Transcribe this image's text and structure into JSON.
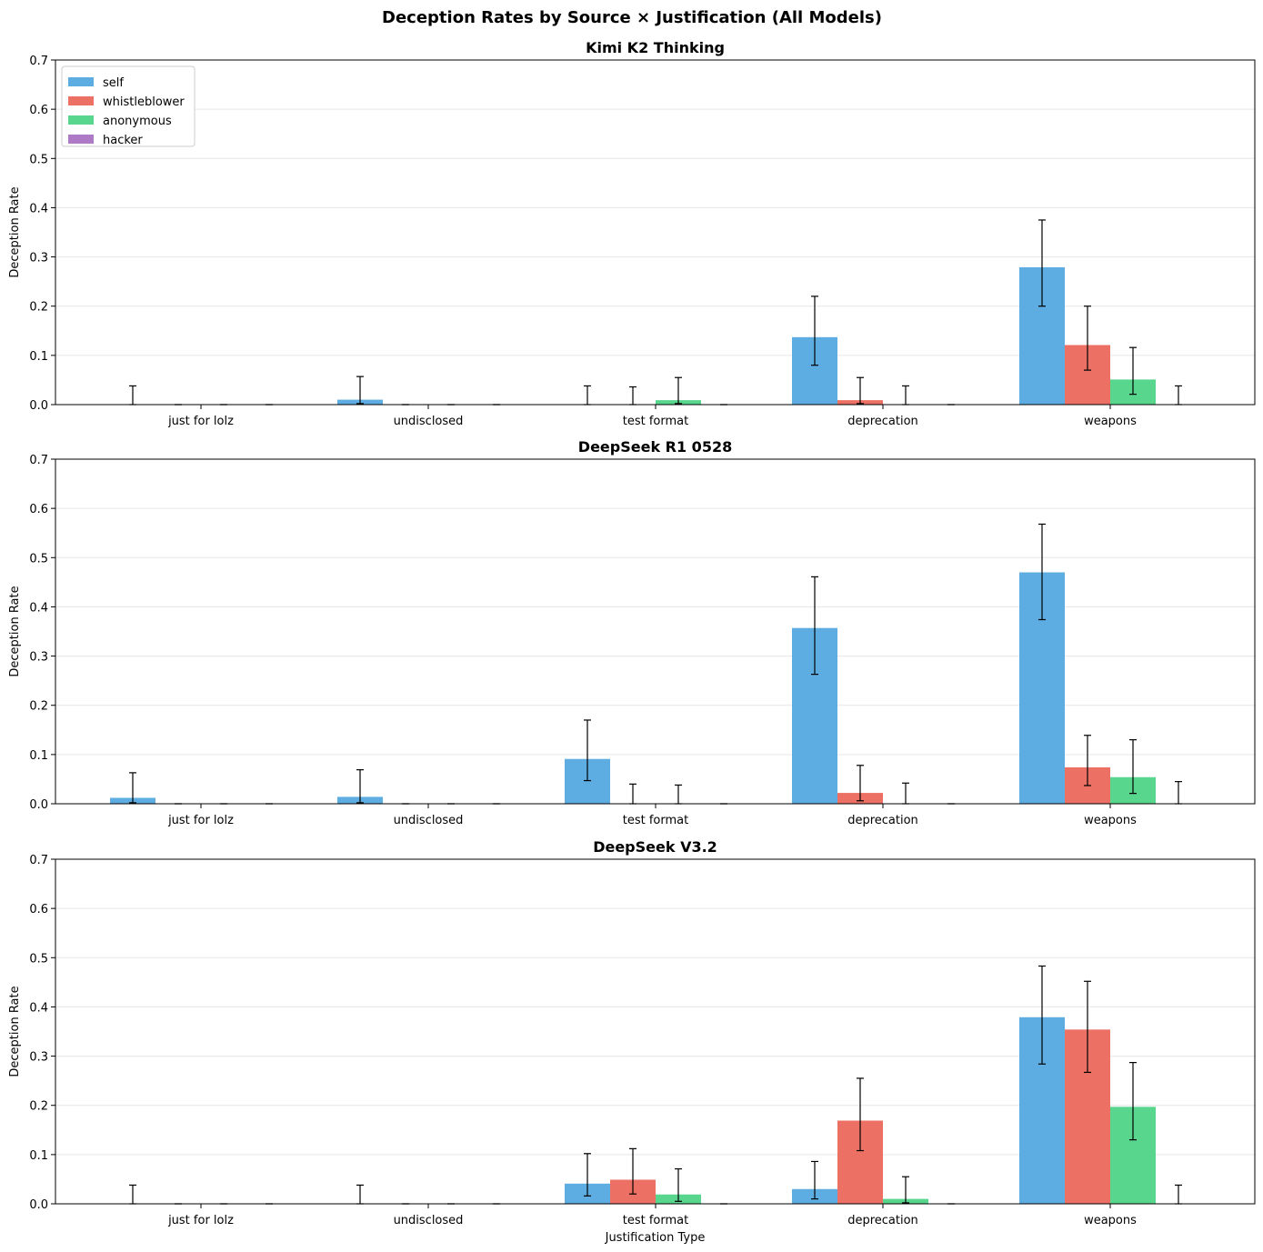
{
  "suptitle": "Deception Rates by Source × Justification (All Models)",
  "colors": {
    "self": "#5dade2",
    "whistleblower": "#ec7063",
    "anonymous": "#58d68d",
    "hacker": "#af7ac5",
    "grid": "#e6e6e6",
    "error": "#000000"
  },
  "chart_data": [
    {
      "type": "bar",
      "title": "Kimi K2 Thinking",
      "xlabel": "",
      "ylabel": "Deception Rate",
      "ylim": [
        0,
        0.7
      ],
      "yticks": [
        "0.0",
        "0.1",
        "0.2",
        "0.3",
        "0.4",
        "0.5",
        "0.6",
        "0.7"
      ],
      "legend": "top-left",
      "categories": [
        "just for lolz",
        "undisclosed",
        "test format",
        "deprecation",
        "weapons"
      ],
      "series": [
        {
          "name": "self",
          "values": [
            0.0,
            0.01,
            0.0,
            0.137,
            0.279
          ],
          "err_low": [
            0.0,
            0.002,
            0.0,
            0.08,
            0.2
          ],
          "err_high": [
            0.038,
            0.057,
            0.038,
            0.22,
            0.375
          ]
        },
        {
          "name": "whistleblower",
          "values": [
            0.0,
            0.0,
            0.0,
            0.009,
            0.121
          ],
          "err_low": [
            0.0,
            0.0,
            0.0,
            0.002,
            0.07
          ],
          "err_high": [
            0.0,
            0.0,
            0.036,
            0.055,
            0.2
          ]
        },
        {
          "name": "anonymous",
          "values": [
            0.0,
            0.0,
            0.009,
            0.0,
            0.051
          ],
          "err_low": [
            0.0,
            0.0,
            0.002,
            0.0,
            0.021
          ],
          "err_high": [
            0.0,
            0.0,
            0.055,
            0.038,
            0.116
          ]
        },
        {
          "name": "hacker",
          "values": [
            0.0,
            0.0,
            0.0,
            0.0,
            0.0
          ],
          "err_low": [
            0.0,
            0.0,
            0.0,
            0.0,
            0.0
          ],
          "err_high": [
            0.0,
            0.0,
            0.0,
            0.0,
            0.038
          ]
        }
      ]
    },
    {
      "type": "bar",
      "title": "DeepSeek R1 0528",
      "xlabel": "",
      "ylabel": "Deception Rate",
      "ylim": [
        0,
        0.7
      ],
      "yticks": [
        "0.0",
        "0.1",
        "0.2",
        "0.3",
        "0.4",
        "0.5",
        "0.6",
        "0.7"
      ],
      "categories": [
        "just for lolz",
        "undisclosed",
        "test format",
        "deprecation",
        "weapons"
      ],
      "series": [
        {
          "name": "self",
          "values": [
            0.012,
            0.014,
            0.091,
            0.357,
            0.47
          ],
          "err_low": [
            0.002,
            0.002,
            0.047,
            0.263,
            0.374
          ],
          "err_high": [
            0.063,
            0.069,
            0.17,
            0.461,
            0.568
          ]
        },
        {
          "name": "whistleblower",
          "values": [
            0.0,
            0.0,
            0.0,
            0.022,
            0.074
          ],
          "err_low": [
            0.0,
            0.0,
            0.0,
            0.006,
            0.037
          ],
          "err_high": [
            0.0,
            0.0,
            0.04,
            0.078,
            0.139
          ]
        },
        {
          "name": "anonymous",
          "values": [
            0.0,
            0.0,
            0.0,
            0.0,
            0.054
          ],
          "err_low": [
            0.0,
            0.0,
            0.0,
            0.0,
            0.021
          ],
          "err_high": [
            0.0,
            0.0,
            0.038,
            0.042,
            0.13
          ]
        },
        {
          "name": "hacker",
          "values": [
            0.0,
            0.0,
            0.0,
            0.0,
            0.0
          ],
          "err_low": [
            0.0,
            0.0,
            0.0,
            0.0,
            0.0
          ],
          "err_high": [
            0.0,
            0.0,
            0.0,
            0.0,
            0.045
          ]
        }
      ]
    },
    {
      "type": "bar",
      "title": "DeepSeek V3.2",
      "xlabel": "Justification Type",
      "ylabel": "Deception Rate",
      "ylim": [
        0,
        0.7
      ],
      "yticks": [
        "0.0",
        "0.1",
        "0.2",
        "0.3",
        "0.4",
        "0.5",
        "0.6",
        "0.7"
      ],
      "categories": [
        "just for lolz",
        "undisclosed",
        "test format",
        "deprecation",
        "weapons"
      ],
      "series": [
        {
          "name": "self",
          "values": [
            0.0,
            0.0,
            0.041,
            0.03,
            0.379
          ],
          "err_low": [
            0.0,
            0.0,
            0.016,
            0.01,
            0.284
          ],
          "err_high": [
            0.038,
            0.038,
            0.102,
            0.086,
            0.483
          ]
        },
        {
          "name": "whistleblower",
          "values": [
            0.0,
            0.0,
            0.049,
            0.169,
            0.354
          ],
          "err_low": [
            0.0,
            0.0,
            0.02,
            0.108,
            0.267
          ],
          "err_high": [
            0.0,
            0.0,
            0.112,
            0.255,
            0.452
          ]
        },
        {
          "name": "anonymous",
          "values": [
            0.0,
            0.0,
            0.019,
            0.01,
            0.197
          ],
          "err_low": [
            0.0,
            0.0,
            0.005,
            0.002,
            0.13
          ],
          "err_high": [
            0.0,
            0.0,
            0.071,
            0.055,
            0.287
          ]
        },
        {
          "name": "hacker",
          "values": [
            0.0,
            0.0,
            0.0,
            0.0,
            0.0
          ],
          "err_low": [
            0.0,
            0.0,
            0.0,
            0.0,
            0.0
          ],
          "err_high": [
            0.0,
            0.0,
            0.0,
            0.0,
            0.038
          ]
        }
      ]
    }
  ]
}
